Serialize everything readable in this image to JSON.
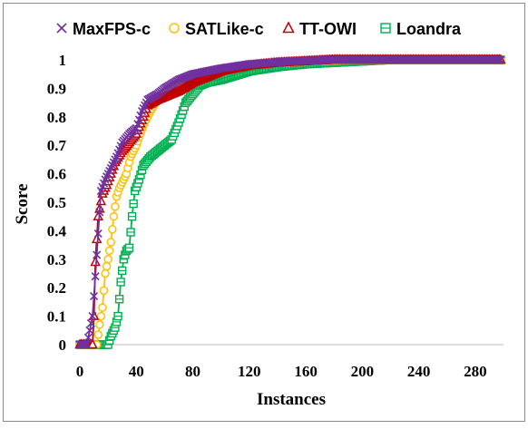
{
  "chart_data": {
    "type": "line",
    "xlabel": "Instances",
    "ylabel": "Score",
    "xlim": [
      0,
      300
    ],
    "ylim": [
      0,
      1
    ],
    "xticks": [
      0,
      40,
      80,
      120,
      160,
      200,
      240,
      280
    ],
    "yticks": [
      0,
      0.1,
      0.2,
      0.3,
      0.4,
      0.5,
      0.6,
      0.7,
      0.8,
      0.9,
      1
    ],
    "legend_position": "top",
    "grid": false,
    "series": [
      {
        "name": "MaxFPS-c",
        "color": "#7030A0",
        "marker": "x",
        "points": [
          [
            0,
            0
          ],
          [
            5,
            0
          ],
          [
            9,
            0.1
          ],
          [
            11,
            0.24
          ],
          [
            13,
            0.39
          ],
          [
            15,
            0.54
          ],
          [
            18,
            0.58
          ],
          [
            22,
            0.62
          ],
          [
            26,
            0.66
          ],
          [
            30,
            0.71
          ],
          [
            35,
            0.74
          ],
          [
            40,
            0.76
          ],
          [
            44,
            0.82
          ],
          [
            48,
            0.86
          ],
          [
            55,
            0.88
          ],
          [
            60,
            0.9
          ],
          [
            70,
            0.93
          ],
          [
            80,
            0.95
          ],
          [
            90,
            0.96
          ],
          [
            100,
            0.97
          ],
          [
            120,
            0.985
          ],
          [
            140,
            0.992
          ],
          [
            160,
            0.997
          ],
          [
            180,
            1
          ],
          [
            298,
            1
          ]
        ]
      },
      {
        "name": "SATLike-c",
        "color": "#FFC000",
        "marker": "circle",
        "points": [
          [
            0,
            0
          ],
          [
            12,
            0
          ],
          [
            14,
            0.07
          ],
          [
            16,
            0.13
          ],
          [
            18,
            0.25
          ],
          [
            20,
            0.3
          ],
          [
            22,
            0.36
          ],
          [
            24,
            0.45
          ],
          [
            26,
            0.52
          ],
          [
            28,
            0.55
          ],
          [
            30,
            0.57
          ],
          [
            33,
            0.6
          ],
          [
            36,
            0.66
          ],
          [
            40,
            0.7
          ],
          [
            45,
            0.77
          ],
          [
            50,
            0.82
          ],
          [
            55,
            0.86
          ],
          [
            60,
            0.88
          ],
          [
            70,
            0.91
          ],
          [
            80,
            0.93
          ],
          [
            90,
            0.95
          ],
          [
            100,
            0.96
          ],
          [
            120,
            0.98
          ],
          [
            140,
            0.99
          ],
          [
            160,
            0.995
          ],
          [
            190,
            1
          ],
          [
            298,
            1
          ]
        ]
      },
      {
        "name": "TT-OWI",
        "color": "#C00000",
        "marker": "triangle",
        "points": [
          [
            0,
            0
          ],
          [
            9,
            0
          ],
          [
            10,
            0.1
          ],
          [
            11,
            0.29
          ],
          [
            13,
            0.45
          ],
          [
            16,
            0.53
          ],
          [
            19,
            0.56
          ],
          [
            22,
            0.6
          ],
          [
            25,
            0.64
          ],
          [
            30,
            0.68
          ],
          [
            35,
            0.71
          ],
          [
            40,
            0.74
          ],
          [
            45,
            0.8
          ],
          [
            48,
            0.84
          ],
          [
            55,
            0.86
          ],
          [
            60,
            0.87
          ],
          [
            70,
            0.89
          ],
          [
            80,
            0.92
          ],
          [
            90,
            0.94
          ],
          [
            100,
            0.96
          ],
          [
            120,
            0.98
          ],
          [
            140,
            0.99
          ],
          [
            160,
            0.995
          ],
          [
            180,
            1
          ],
          [
            298,
            1
          ]
        ]
      },
      {
        "name": "Loandra",
        "color": "#00B050",
        "marker": "square",
        "points": [
          [
            0,
            0
          ],
          [
            20,
            0
          ],
          [
            22,
            0.03
          ],
          [
            25,
            0.06
          ],
          [
            27,
            0.1
          ],
          [
            29,
            0.22
          ],
          [
            31,
            0.3
          ],
          [
            33,
            0.33
          ],
          [
            35,
            0.34
          ],
          [
            37,
            0.45
          ],
          [
            39,
            0.54
          ],
          [
            42,
            0.58
          ],
          [
            45,
            0.63
          ],
          [
            50,
            0.66
          ],
          [
            55,
            0.68
          ],
          [
            60,
            0.7
          ],
          [
            65,
            0.72
          ],
          [
            70,
            0.78
          ],
          [
            75,
            0.85
          ],
          [
            80,
            0.88
          ],
          [
            85,
            0.91
          ],
          [
            90,
            0.92
          ],
          [
            100,
            0.93
          ],
          [
            110,
            0.945
          ],
          [
            120,
            0.96
          ],
          [
            140,
            0.975
          ],
          [
            160,
            0.985
          ],
          [
            180,
            0.99
          ],
          [
            200,
            0.995
          ],
          [
            220,
            1
          ],
          [
            298,
            1
          ]
        ]
      }
    ]
  }
}
